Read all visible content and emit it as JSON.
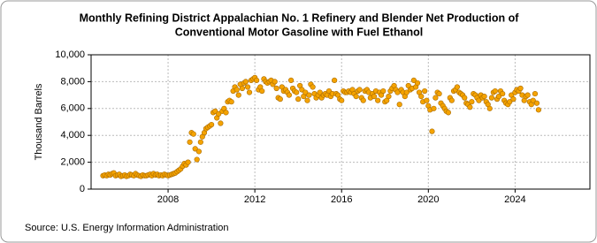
{
  "chart_data": {
    "type": "scatter",
    "title": [
      "Monthly Refining District Appalachian No. 1 Refinery and Blender Net Production of",
      "Conventional Motor Gasoline with Fuel Ethanol"
    ],
    "y_label": "Thousand Barrels",
    "source": "Source: U.S. Energy Information Administration",
    "color": "#f5a300",
    "grid": true,
    "xlim": [
      2004.45,
      2027.45
    ],
    "xticks": [
      2008,
      2012,
      2016,
      2020,
      2024
    ],
    "ylim": [
      0,
      10000
    ],
    "yticks": [
      0,
      {
        "value": 2000,
        "label": "2,000"
      },
      {
        "value": 4000,
        "label": "4,000"
      },
      {
        "value": 6000,
        "label": "6,000"
      },
      {
        "value": 8000,
        "label": "8,000"
      },
      {
        "value": 10000,
        "label": "10,000"
      }
    ],
    "x": [
      2005.0,
      2005.08,
      2005.17,
      2005.25,
      2005.33,
      2005.42,
      2005.5,
      2005.58,
      2005.67,
      2005.75,
      2005.83,
      2005.92,
      2006.0,
      2006.08,
      2006.17,
      2006.25,
      2006.33,
      2006.42,
      2006.5,
      2006.58,
      2006.67,
      2006.75,
      2006.83,
      2006.92,
      2007.0,
      2007.08,
      2007.17,
      2007.25,
      2007.33,
      2007.42,
      2007.5,
      2007.58,
      2007.67,
      2007.75,
      2007.83,
      2007.92,
      2008.0,
      2008.08,
      2008.17,
      2008.25,
      2008.33,
      2008.42,
      2008.5,
      2008.58,
      2008.67,
      2008.75,
      2008.83,
      2008.92,
      2009.0,
      2009.08,
      2009.17,
      2009.25,
      2009.33,
      2009.42,
      2009.5,
      2009.58,
      2009.67,
      2009.75,
      2009.83,
      2009.92,
      2010.0,
      2010.08,
      2010.17,
      2010.25,
      2010.33,
      2010.42,
      2010.5,
      2010.58,
      2010.67,
      2010.75,
      2010.83,
      2010.92,
      2011.0,
      2011.08,
      2011.17,
      2011.25,
      2011.33,
      2011.42,
      2011.5,
      2011.58,
      2011.67,
      2011.75,
      2011.83,
      2011.92,
      2012.0,
      2012.08,
      2012.17,
      2012.25,
      2012.33,
      2012.42,
      2012.5,
      2012.58,
      2012.67,
      2012.75,
      2012.83,
      2012.92,
      2013.0,
      2013.08,
      2013.17,
      2013.25,
      2013.33,
      2013.42,
      2013.5,
      2013.58,
      2013.67,
      2013.75,
      2013.83,
      2013.92,
      2014.0,
      2014.08,
      2014.17,
      2014.25,
      2014.33,
      2014.42,
      2014.5,
      2014.58,
      2014.67,
      2014.75,
      2014.83,
      2014.92,
      2015.0,
      2015.08,
      2015.17,
      2015.25,
      2015.33,
      2015.42,
      2015.5,
      2015.58,
      2015.67,
      2015.75,
      2015.83,
      2015.92,
      2016.0,
      2016.08,
      2016.17,
      2016.25,
      2016.33,
      2016.42,
      2016.5,
      2016.58,
      2016.67,
      2016.75,
      2016.83,
      2016.92,
      2017.0,
      2017.08,
      2017.17,
      2017.25,
      2017.33,
      2017.42,
      2017.5,
      2017.58,
      2017.67,
      2017.75,
      2017.83,
      2017.92,
      2018.0,
      2018.08,
      2018.17,
      2018.25,
      2018.33,
      2018.42,
      2018.5,
      2018.58,
      2018.67,
      2018.75,
      2018.83,
      2018.92,
      2019.0,
      2019.08,
      2019.17,
      2019.25,
      2019.33,
      2019.42,
      2019.5,
      2019.58,
      2019.67,
      2019.75,
      2019.83,
      2019.92,
      2020.0,
      2020.08,
      2020.17,
      2020.25,
      2020.33,
      2020.42,
      2020.5,
      2020.58,
      2020.67,
      2020.75,
      2020.83,
      2020.92,
      2021.0,
      2021.08,
      2021.17,
      2021.25,
      2021.33,
      2021.42,
      2021.5,
      2021.58,
      2021.67,
      2021.75,
      2021.83,
      2021.92,
      2022.0,
      2022.08,
      2022.17,
      2022.25,
      2022.33,
      2022.42,
      2022.5,
      2022.58,
      2022.67,
      2022.75,
      2022.83,
      2022.92,
      2023.0,
      2023.08,
      2023.17,
      2023.25,
      2023.33,
      2023.42,
      2023.5,
      2023.58,
      2023.67,
      2023.75,
      2023.83,
      2023.92,
      2024.0,
      2024.08,
      2024.17,
      2024.25,
      2024.33,
      2024.42,
      2024.5,
      2024.58,
      2024.67,
      2024.75,
      2024.83,
      2024.92,
      2025.0,
      2025.08
    ],
    "values": [
      1000,
      1050,
      1000,
      1100,
      1050,
      1150,
      1200,
      1000,
      1050,
      1100,
      950,
      1000,
      1050,
      950,
      1000,
      1100,
      1050,
      1000,
      1150,
      1050,
      1000,
      950,
      1050,
      1000,
      1000,
      1050,
      1100,
      1000,
      1150,
      1050,
      1100,
      1000,
      1050,
      1000,
      1100,
      1050,
      1000,
      1050,
      1100,
      1150,
      1200,
      1300,
      1400,
      1500,
      1700,
      1900,
      1800,
      2000,
      3500,
      4200,
      4100,
      3000,
      2200,
      2800,
      3500,
      3900,
      4200,
      4500,
      4600,
      4700,
      4800,
      5700,
      5800,
      5300,
      5600,
      4900,
      5800,
      6000,
      5700,
      6500,
      6600,
      6500,
      7300,
      7600,
      7400,
      7000,
      7800,
      7500,
      7900,
      8000,
      7600,
      7200,
      8100,
      8200,
      8300,
      8100,
      7400,
      7600,
      7300,
      8200,
      8000,
      7900,
      8000,
      8100,
      7800,
      8000,
      7500,
      6800,
      6700,
      7600,
      7300,
      7400,
      7200,
      7000,
      8100,
      7500,
      7300,
      7200,
      6700,
      7700,
      7400,
      6900,
      7200,
      6600,
      7000,
      7800,
      7600,
      7100,
      6800,
      7000,
      7200,
      6800,
      7000,
      7100,
      7000,
      7300,
      6900,
      7100,
      8100,
      7100,
      7000,
      6700,
      6600,
      7300,
      7200,
      7200,
      7300,
      7200,
      7400,
      7100,
      6900,
      7300,
      7400,
      6800,
      6600,
      7300,
      7400,
      7200,
      6800,
      7100,
      6900,
      7300,
      6600,
      7200,
      7000,
      7300,
      6500,
      6600,
      6900,
      7300,
      7500,
      7700,
      7400,
      7200,
      6300,
      7400,
      7200,
      6900,
      7200,
      7700,
      7400,
      7500,
      8100,
      7600,
      7900,
      7200,
      6900,
      6500,
      7300,
      6600,
      6200,
      5900,
      4300,
      6000,
      6800,
      7200,
      7100,
      6400,
      6200,
      6000,
      5800,
      5700,
      6800,
      6600,
      7300,
      7400,
      7600,
      7200,
      7100,
      7000,
      6800,
      6400,
      6300,
      6100,
      6500,
      7100,
      7000,
      6800,
      6600,
      7000,
      6800,
      6900,
      6500,
      6300,
      6000,
      6800,
      7200,
      7300,
      6700,
      6900,
      7300,
      7100,
      6600,
      6400,
      6300,
      6500,
      7000,
      6700,
      7200,
      7400,
      7300,
      7500,
      7000,
      6600,
      6900,
      7000,
      6500,
      6300,
      6600,
      7100,
      6400,
      5900
    ]
  }
}
